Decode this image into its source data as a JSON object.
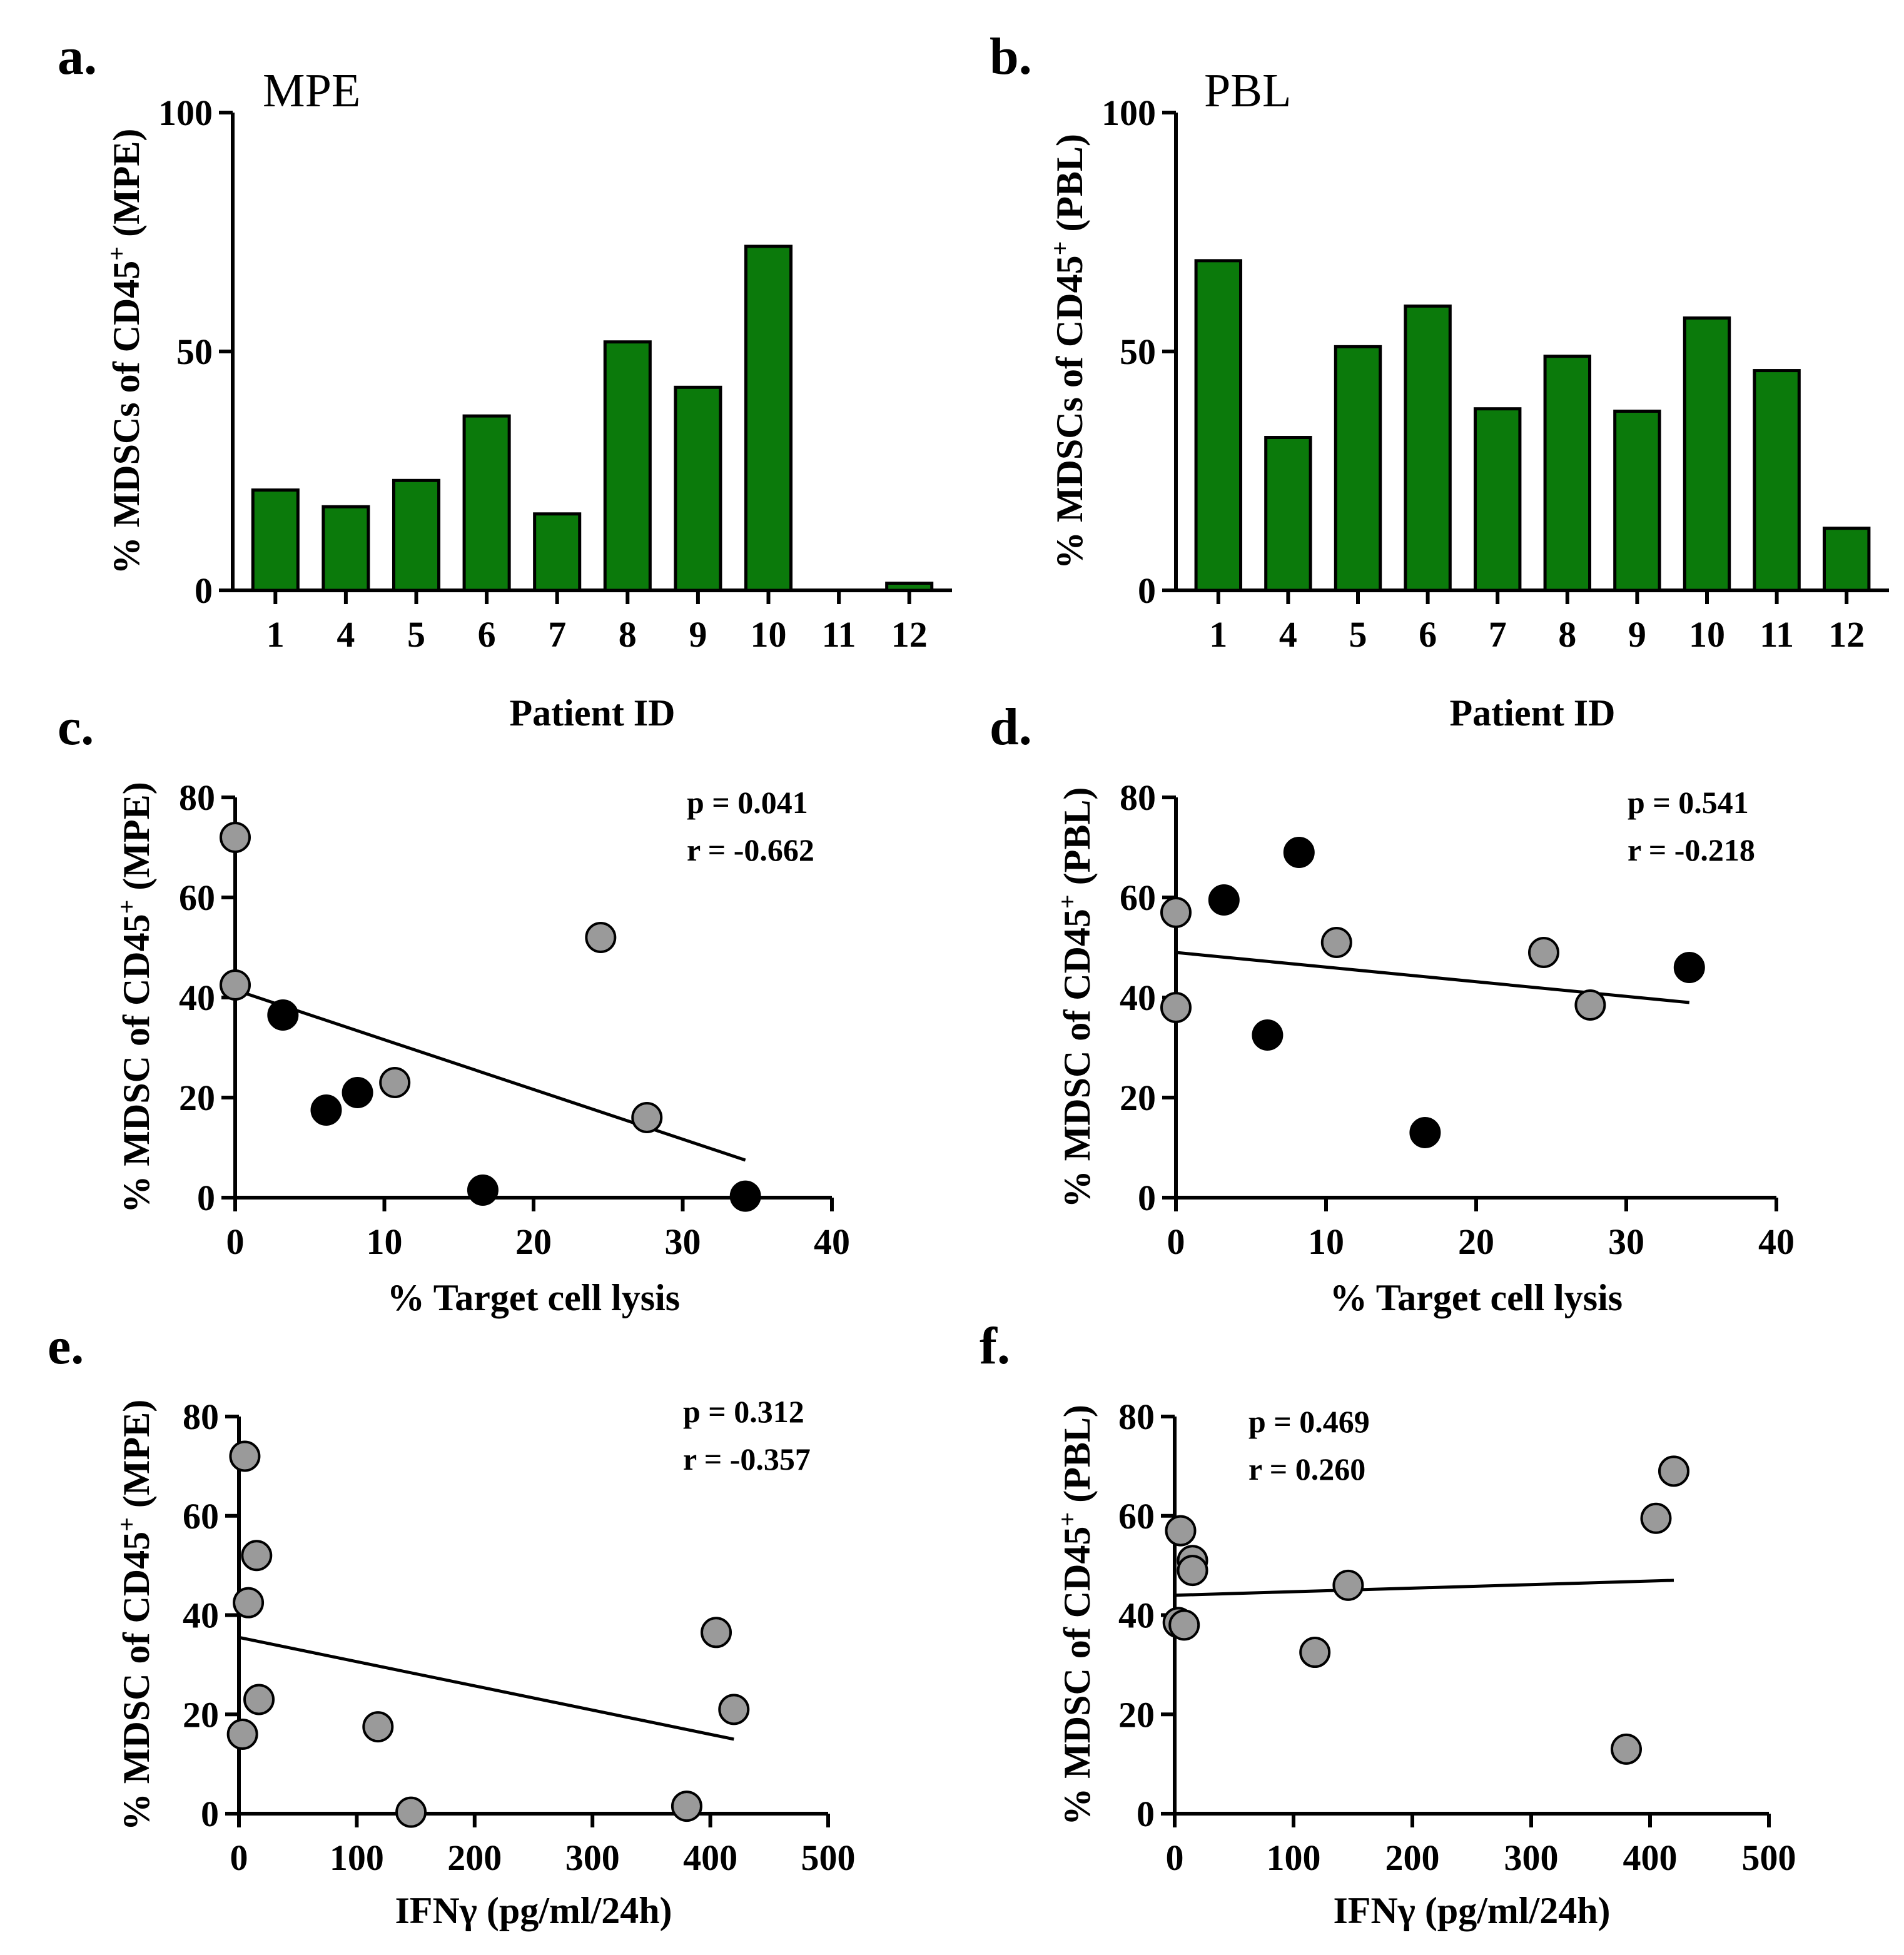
{
  "colors": {
    "bar": "#0b7a0b",
    "gray_point": "#9a9a9a",
    "black_point": "#000000",
    "axis": "#000000"
  },
  "chart_data": [
    {
      "id": "a",
      "type": "bar",
      "letter": "a.",
      "title": "MPE",
      "categories": [
        "1",
        "4",
        "5",
        "6",
        "7",
        "8",
        "9",
        "10",
        "11",
        "12"
      ],
      "values": [
        21,
        17.5,
        23,
        36.5,
        16,
        52,
        42.5,
        72,
        0,
        1.5
      ],
      "ylim": [
        0,
        100
      ],
      "yticks": [
        0,
        50,
        100
      ],
      "xlabel": "Patient ID",
      "ylabel": "% MDSCs of CD45+ (MPE)",
      "ylabel_parts": [
        "% MDSCs of CD45",
        "+",
        " (MPE)"
      ]
    },
    {
      "id": "b",
      "type": "bar",
      "letter": "b.",
      "title": "PBL",
      "categories": [
        "1",
        "4",
        "5",
        "6",
        "7",
        "8",
        "9",
        "10",
        "11",
        "12"
      ],
      "values": [
        69,
        32,
        51,
        59.5,
        38,
        49,
        37.5,
        57,
        46,
        13
      ],
      "ylim": [
        0,
        100
      ],
      "yticks": [
        0,
        50,
        100
      ],
      "xlabel": "Patient ID",
      "ylabel": "% MDSCs of CD45+ (PBL)",
      "ylabel_parts": [
        "% MDSCs of CD45",
        "+",
        " (PBL)"
      ]
    },
    {
      "id": "c",
      "type": "scatter",
      "letter": "c.",
      "xlim": [
        0,
        40
      ],
      "xticks": [
        0,
        10,
        20,
        30,
        40
      ],
      "ylim": [
        0,
        80
      ],
      "yticks": [
        0,
        20,
        40,
        60,
        80
      ],
      "xlabel": "% Target cell lysis",
      "ylabel": "% MDSC of CD45+ (MPE)",
      "ylabel_parts": [
        "% MDSC of CD45",
        "+",
        " (MPE)"
      ],
      "p_text": "p = 0.041",
      "r_text": "r = -0.662",
      "points": [
        {
          "x": 0,
          "y": 72,
          "group": "gray"
        },
        {
          "x": 0,
          "y": 42.5,
          "group": "gray"
        },
        {
          "x": 24.5,
          "y": 52,
          "group": "gray"
        },
        {
          "x": 27.6,
          "y": 16,
          "group": "gray"
        },
        {
          "x": 10.7,
          "y": 23,
          "group": "gray"
        },
        {
          "x": 3.2,
          "y": 36.5,
          "group": "black"
        },
        {
          "x": 6.1,
          "y": 17.5,
          "group": "black"
        },
        {
          "x": 8.2,
          "y": 21,
          "group": "black"
        },
        {
          "x": 16.6,
          "y": 1.5,
          "group": "black"
        },
        {
          "x": 34.2,
          "y": 0.3,
          "group": "black"
        }
      ],
      "fit": {
        "x1": 0,
        "y1": 41.5,
        "x2": 34.2,
        "y2": 7.5
      }
    },
    {
      "id": "d",
      "type": "scatter",
      "letter": "d.",
      "xlim": [
        0,
        40
      ],
      "xticks": [
        0,
        10,
        20,
        30,
        40
      ],
      "ylim": [
        0,
        80
      ],
      "yticks": [
        0,
        20,
        40,
        60,
        80
      ],
      "xlabel": "% Target cell lysis",
      "ylabel": "% MDSC of CD45+ (PBL)",
      "ylabel_parts": [
        "% MDSC of CD45",
        "+",
        " (PBL)"
      ],
      "p_text": "p = 0.541",
      "r_text": "r = -0.218",
      "points": [
        {
          "x": 0,
          "y": 57,
          "group": "gray"
        },
        {
          "x": 0,
          "y": 38,
          "group": "gray"
        },
        {
          "x": 10.7,
          "y": 51,
          "group": "gray"
        },
        {
          "x": 24.5,
          "y": 49,
          "group": "gray"
        },
        {
          "x": 27.6,
          "y": 38.5,
          "group": "gray"
        },
        {
          "x": 3.2,
          "y": 59.5,
          "group": "black"
        },
        {
          "x": 8.2,
          "y": 69,
          "group": "black"
        },
        {
          "x": 6.1,
          "y": 32.5,
          "group": "black"
        },
        {
          "x": 16.6,
          "y": 13,
          "group": "black"
        },
        {
          "x": 34.2,
          "y": 46,
          "group": "black"
        }
      ],
      "fit": {
        "x1": 0,
        "y1": 49,
        "x2": 34.2,
        "y2": 39
      }
    },
    {
      "id": "e",
      "type": "scatter",
      "letter": "e.",
      "xlim": [
        0,
        500
      ],
      "xticks": [
        0,
        100,
        200,
        300,
        400,
        500
      ],
      "ylim": [
        0,
        80
      ],
      "yticks": [
        0,
        20,
        40,
        60,
        80
      ],
      "xlabel": "IFNγ (pg/ml/24h)",
      "ylabel": "% MDSC of CD45+ (MPE)",
      "ylabel_parts": [
        "% MDSC of CD45",
        "+",
        " (MPE)"
      ],
      "p_text": "p = 0.312",
      "r_text": "r = -0.357",
      "points": [
        {
          "x": 5,
          "y": 72,
          "group": "gray"
        },
        {
          "x": 15,
          "y": 52,
          "group": "gray"
        },
        {
          "x": 8,
          "y": 42.5,
          "group": "gray"
        },
        {
          "x": 17,
          "y": 23,
          "group": "gray"
        },
        {
          "x": 3,
          "y": 16,
          "group": "gray"
        },
        {
          "x": 118,
          "y": 17.5,
          "group": "gray"
        },
        {
          "x": 146,
          "y": 0.3,
          "group": "gray"
        },
        {
          "x": 380,
          "y": 1.5,
          "group": "gray"
        },
        {
          "x": 405,
          "y": 36.5,
          "group": "gray"
        },
        {
          "x": 420,
          "y": 21,
          "group": "gray"
        }
      ],
      "fit": {
        "x1": 0,
        "y1": 35.5,
        "x2": 420,
        "y2": 15
      }
    },
    {
      "id": "f",
      "type": "scatter",
      "letter": "f.",
      "xlim": [
        0,
        500
      ],
      "xticks": [
        0,
        100,
        200,
        300,
        400,
        500
      ],
      "ylim": [
        0,
        80
      ],
      "yticks": [
        0,
        20,
        40,
        60,
        80
      ],
      "xlabel": "IFNγ (pg/ml/24h)",
      "ylabel": "% MDSC of CD45+ (PBL)",
      "ylabel_parts": [
        "% MDSC of CD45",
        "+",
        " (PBL)"
      ],
      "p_text": "p = 0.469",
      "r_text": "r = 0.260",
      "points": [
        {
          "x": 5,
          "y": 57,
          "group": "gray"
        },
        {
          "x": 15,
          "y": 51,
          "group": "gray"
        },
        {
          "x": 15,
          "y": 49,
          "group": "gray"
        },
        {
          "x": 3,
          "y": 38.5,
          "group": "gray"
        },
        {
          "x": 8,
          "y": 38,
          "group": "gray"
        },
        {
          "x": 146,
          "y": 46,
          "group": "gray"
        },
        {
          "x": 118,
          "y": 32.5,
          "group": "gray"
        },
        {
          "x": 380,
          "y": 13,
          "group": "gray"
        },
        {
          "x": 405,
          "y": 59.5,
          "group": "gray"
        },
        {
          "x": 420,
          "y": 69,
          "group": "gray"
        }
      ],
      "fit": {
        "x1": 0,
        "y1": 44,
        "x2": 420,
        "y2": 47
      }
    }
  ]
}
